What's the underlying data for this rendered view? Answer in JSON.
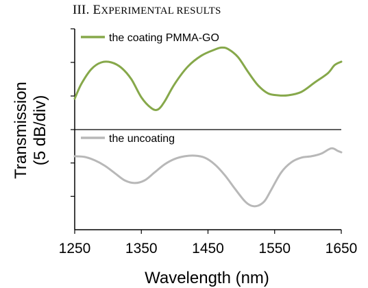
{
  "section_heading": {
    "numeral": "III.",
    "first_letter": "E",
    "rest_smallcaps": "XPERIMENTAL RESULTS"
  },
  "chart_data": {
    "type": "line",
    "xlabel": "Wavelength (nm)",
    "ylabel_line1": "Transmission",
    "ylabel_line2": "(5 dB/div)",
    "xlim": [
      1250,
      1650
    ],
    "xticks": [
      1250,
      1350,
      1450,
      1550,
      1650
    ],
    "grid": false,
    "legend_placement": "top-left of each panel",
    "panels": [
      {
        "name": "top",
        "ylim": [
          -15,
          0
        ],
        "yticks": [
          -5,
          -10
        ],
        "series": [
          {
            "name": "the coating PMMA-GO",
            "color": "#86a84a",
            "x": [
              1250,
              1260,
              1275,
              1290,
              1305,
              1320,
              1335,
              1350,
              1365,
              1375,
              1385,
              1400,
              1420,
              1440,
              1460,
              1470,
              1480,
              1495,
              1510,
              1525,
              1540,
              1555,
              1570,
              1590,
              1610,
              1630,
              1640,
              1650
            ],
            "y": [
              -10.4,
              -8.2,
              -6.0,
              -5.0,
              -5.0,
              -5.8,
              -7.5,
              -10.2,
              -11.8,
              -12.0,
              -10.8,
              -8.2,
              -5.6,
              -4.0,
              -3.1,
              -2.8,
              -3.0,
              -4.2,
              -6.4,
              -8.4,
              -9.6,
              -9.9,
              -9.9,
              -9.4,
              -8.0,
              -6.6,
              -5.4,
              -4.9
            ]
          }
        ]
      },
      {
        "name": "bottom",
        "ylim": [
          -15,
          0
        ],
        "yticks": [
          -5,
          -10
        ],
        "series": [
          {
            "name": "the uncoating",
            "color": "#b8b8b8",
            "x": [
              1250,
              1265,
              1280,
              1295,
              1310,
              1325,
              1340,
              1355,
              1370,
              1385,
              1400,
              1415,
              1430,
              1445,
              1460,
              1475,
              1490,
              1505,
              1515,
              1525,
              1535,
              1545,
              1560,
              1575,
              1590,
              1605,
              1620,
              1635,
              1645,
              1650
            ],
            "y": [
              -4.0,
              -4.1,
              -4.6,
              -5.4,
              -6.5,
              -7.6,
              -8.0,
              -7.6,
              -6.4,
              -5.2,
              -4.4,
              -4.0,
              -3.9,
              -4.2,
              -5.2,
              -6.8,
              -8.8,
              -10.7,
              -11.4,
              -11.4,
              -10.7,
              -9.0,
              -6.4,
              -4.9,
              -4.2,
              -4.0,
              -3.6,
              -2.8,
              -3.2,
              -3.4
            ]
          }
        ]
      }
    ]
  }
}
